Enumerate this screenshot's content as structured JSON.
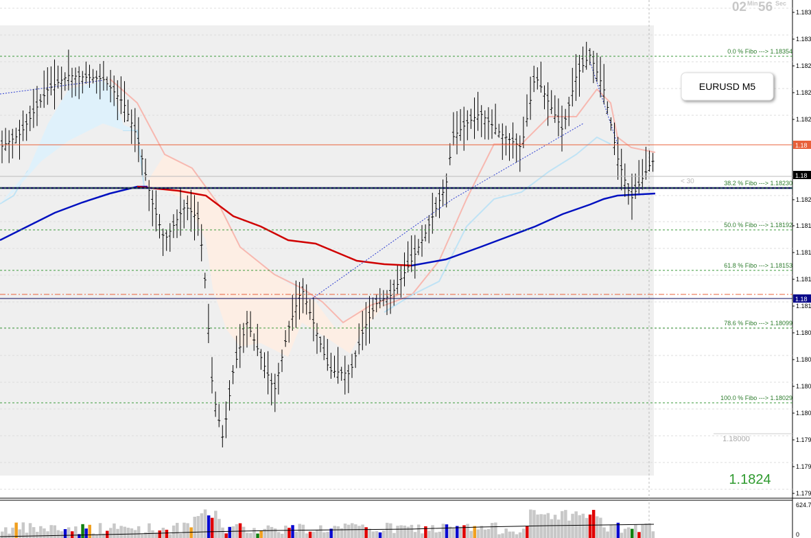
{
  "timer": {
    "minutes": "02",
    "min_label": "Min",
    "seconds": "56",
    "sec_label": "Sec"
  },
  "symbol": "EURUSD M5",
  "price_axis": [
    "1.183",
    "1.183",
    "1.182",
    "1.182",
    "1.182",
    "1.182",
    "1.181",
    "1.181",
    "1.181",
    "1.181",
    "1.180",
    "1.180",
    "1.180",
    "1.180",
    "1.179",
    "1.179",
    "1.179"
  ],
  "price_tags": [
    "1.18",
    "1.18",
    "1.18"
  ],
  "fibo": [
    "0.0  % Fibo   ---> 1.18354",
    "38.2  % Fibo   ---> 1.18230",
    "50.0  % Fibo   ---> 1.18192",
    "61.8  % Fibo   ---> 1.18153",
    "78.6  % Fibo   ---> 1.18099",
    "100.0  % Fibo   ---> 1.18029"
  ],
  "countdown": "< 30",
  "round_level": "1.18000",
  "bid": "1.1824",
  "volume_axis": [
    "624.7",
    "0"
  ]
}
